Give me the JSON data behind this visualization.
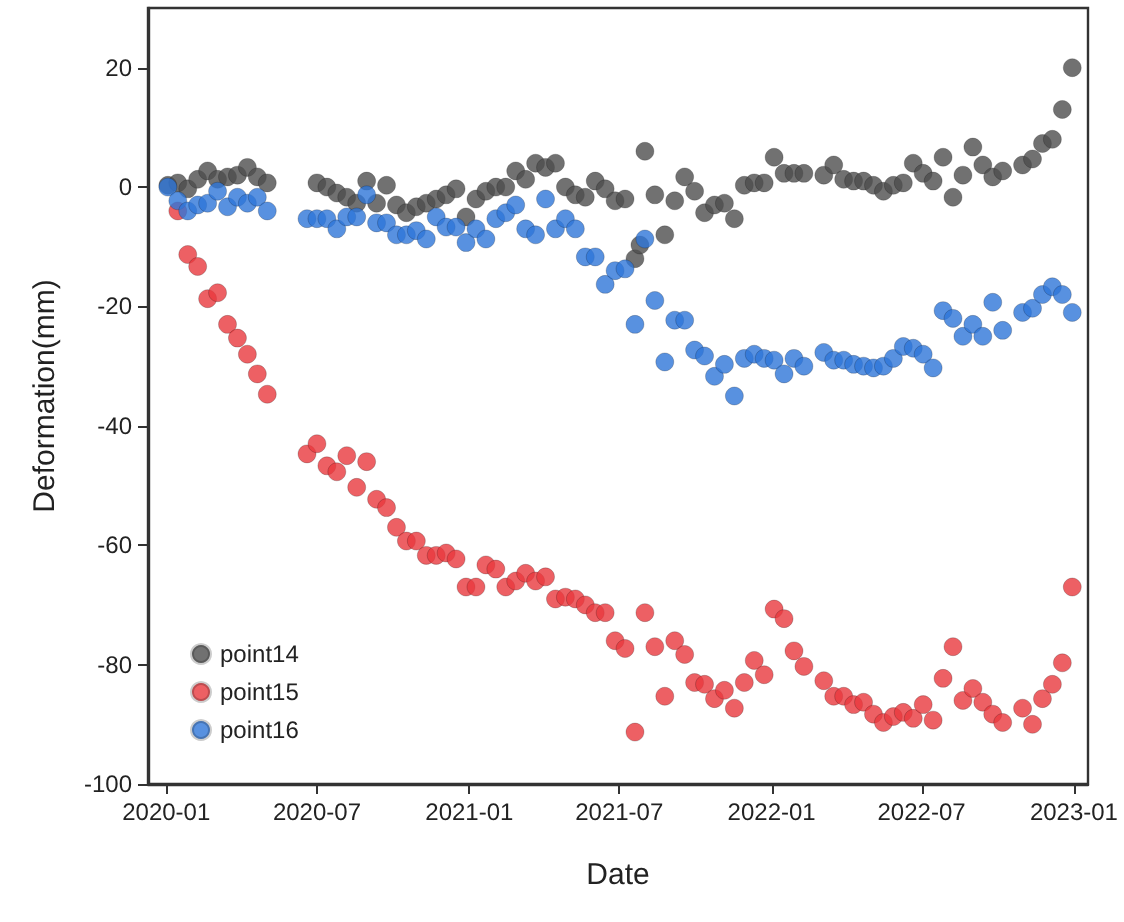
{
  "chart_data": {
    "type": "scatter",
    "xlabel": "Date",
    "ylabel": "Deformation(mm)",
    "x": [
      "2020-01-03",
      "2020-01-15",
      "2020-01-27",
      "2020-02-08",
      "2020-02-20",
      "2020-03-03",
      "2020-03-15",
      "2020-03-27",
      "2020-04-08",
      "2020-04-20",
      "2020-05-02",
      "2020-06-19",
      "2020-07-01",
      "2020-07-13",
      "2020-07-25",
      "2020-08-06",
      "2020-08-18",
      "2020-08-30",
      "2020-09-11",
      "2020-09-23",
      "2020-10-05",
      "2020-10-17",
      "2020-10-29",
      "2020-11-10",
      "2020-11-22",
      "2020-12-04",
      "2020-12-16",
      "2020-12-28",
      "2021-01-09",
      "2021-01-21",
      "2021-02-02",
      "2021-02-14",
      "2021-02-26",
      "2021-03-10",
      "2021-03-22",
      "2021-04-03",
      "2021-04-15",
      "2021-04-27",
      "2021-05-09",
      "2021-05-21",
      "2021-06-02",
      "2021-06-14",
      "2021-06-26",
      "2021-07-08",
      "2021-07-20",
      "2021-07-26",
      "2021-08-01",
      "2021-08-13",
      "2021-08-25",
      "2021-09-06",
      "2021-09-18",
      "2021-09-30",
      "2021-10-12",
      "2021-10-24",
      "2021-11-05",
      "2021-11-17",
      "2021-11-29",
      "2021-12-11",
      "2021-12-23",
      "2022-01-04",
      "2022-01-16",
      "2022-01-28",
      "2022-02-09",
      "2022-03-05",
      "2022-03-17",
      "2022-03-29",
      "2022-04-10",
      "2022-04-22",
      "2022-05-04",
      "2022-05-16",
      "2022-05-28",
      "2022-06-09",
      "2022-06-21",
      "2022-07-03",
      "2022-07-15",
      "2022-07-27",
      "2022-08-08",
      "2022-08-20",
      "2022-09-01",
      "2022-09-13",
      "2022-09-25",
      "2022-10-07",
      "2022-10-31",
      "2022-11-12",
      "2022-11-24",
      "2022-12-06",
      "2022-12-18",
      "2022-12-30"
    ],
    "series": [
      {
        "name": "point14",
        "color": "#4d4d4d",
        "values": [
          0.3,
          0.7,
          -0.3,
          1.3,
          2.7,
          1.3,
          1.7,
          2,
          3.3,
          1.7,
          0.7,
          null,
          0.7,
          0,
          -1,
          -1.7,
          -2.7,
          1,
          -2.7,
          0.3,
          -3,
          -4.3,
          -3.3,
          -2.7,
          -2,
          -1.3,
          -0.3,
          -5,
          -2,
          -0.7,
          0,
          0,
          2.7,
          1.3,
          4,
          3.3,
          4,
          0,
          -1.3,
          -1.7,
          1,
          -0.3,
          -2.3,
          -2,
          -12,
          -9.7,
          6,
          -1.3,
          -8,
          -2.3,
          1.7,
          -0.7,
          -4.3,
          -3,
          -2.7,
          -5.3,
          0.3,
          0.7,
          0.7,
          5,
          2.3,
          2.3,
          2.3,
          2,
          3.7,
          1.3,
          1,
          1,
          0.3,
          -0.7,
          0.3,
          0.7,
          4,
          2.3,
          1,
          5,
          -1.7,
          2,
          6.7,
          3.7,
          1.7,
          2.7,
          3.7,
          4.7,
          7.3,
          8,
          13,
          20
        ]
      },
      {
        "name": "point15",
        "color": "#e8383d",
        "values": [
          null,
          -4,
          -11.3,
          -13.3,
          -18.7,
          -17.7,
          -23,
          -25.3,
          -28,
          -31.3,
          -34.7,
          -44.7,
          -43,
          -46.7,
          -47.7,
          -45,
          -50.3,
          -46,
          -52.3,
          -53.7,
          -57,
          -59.3,
          -59.3,
          -61.7,
          -61.7,
          -61.3,
          -62.3,
          -67,
          -67,
          -63.3,
          -64,
          -67,
          -66,
          -64.7,
          -66,
          -65.3,
          -69,
          -68.7,
          -69,
          -70,
          -71.3,
          -71.3,
          -76,
          -77.3,
          -91.3,
          null,
          -71.3,
          -77,
          -85.3,
          -76,
          -78.3,
          -83,
          -83.3,
          -85.7,
          -84.3,
          -87.3,
          -83,
          -79.3,
          -81.7,
          -70.7,
          -72.3,
          -77.7,
          -80.3,
          -82.7,
          -85.3,
          -85.3,
          -86.7,
          -86.3,
          -88.3,
          -89.7,
          -88.7,
          -88,
          -89,
          -86.7,
          -89.3,
          -82.3,
          -77,
          -86,
          -84,
          -86.3,
          -88.3,
          -89.7,
          -87.3,
          -90,
          -85.7,
          -83.3,
          -79.7,
          -67
        ]
      },
      {
        "name": "point16",
        "color": "#2e75d8",
        "values": [
          0,
          -2.3,
          -4,
          -3,
          -2.7,
          -0.7,
          -3.3,
          -1.7,
          -2.7,
          -1.7,
          -4,
          -5.3,
          -5.3,
          -5.3,
          -7,
          -5,
          -5,
          -1.3,
          -6,
          -6,
          -8,
          -8,
          -7.3,
          -8.7,
          -5,
          -6.7,
          -6.7,
          -9.3,
          -7,
          -8.7,
          -5.3,
          -4.3,
          -3,
          -7,
          -8,
          -2,
          -7,
          -5.3,
          -7,
          -11.7,
          -11.7,
          -16.3,
          -14,
          -13.7,
          -23,
          null,
          -8.7,
          -19,
          -29.3,
          -22.3,
          -22.3,
          -27.3,
          -28.3,
          -31.7,
          -29.7,
          -35,
          -28.7,
          -28,
          -28.7,
          -29,
          -31.3,
          -28.7,
          -30,
          -27.7,
          -29,
          -29,
          -29.7,
          -30,
          -30.3,
          -30,
          -28.7,
          -26.7,
          -27,
          -28,
          -30.3,
          -20.7,
          -22,
          -25,
          -23,
          -25,
          -19.3,
          -24,
          -21,
          -20.3,
          -18,
          -16.7,
          -18,
          -21
        ]
      }
    ],
    "xlim": [
      "2019-12-10",
      "2023-01-18"
    ],
    "xticks": [
      {
        "value": "2020-01-01",
        "label": "2020-01"
      },
      {
        "value": "2020-07-01",
        "label": "2020-07"
      },
      {
        "value": "2021-01-01",
        "label": "2021-01"
      },
      {
        "value": "2021-07-01",
        "label": "2021-07"
      },
      {
        "value": "2022-01-01",
        "label": "2022-01"
      },
      {
        "value": "2022-07-01",
        "label": "2022-07"
      },
      {
        "value": "2023-01-01",
        "label": "2023-01"
      }
    ],
    "ylim": [
      -100,
      30
    ],
    "yticks": [
      -100,
      -80,
      -60,
      -40,
      -20,
      0,
      20
    ],
    "grid": false,
    "legend": "bottom left",
    "marker": "circle"
  }
}
